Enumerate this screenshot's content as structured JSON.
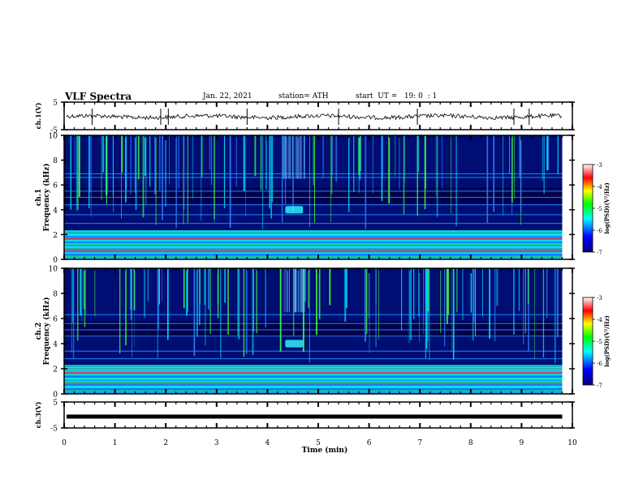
{
  "header": {
    "title": "VLF Spectra",
    "date": "Jan. 22, 2021",
    "station": "station= ATH",
    "start": "start  UT =   19: 0  : 1"
  },
  "chart_data": [
    {
      "id": "ch1-waveform",
      "type": "line",
      "ylabel": "ch.1(V)",
      "yticks": [
        "5",
        "-5"
      ],
      "ylim": [
        -5,
        5
      ],
      "x_range": [
        0,
        10
      ],
      "description": "noisy trace near 0 V across 0–9.8 min"
    },
    {
      "id": "ch1-spectrogram",
      "type": "heatmap",
      "ylabel_top": "ch.1",
      "ylabel": "Frequency (kHz)",
      "yticks": [
        "10",
        "8",
        "6",
        "4",
        "2",
        "0"
      ],
      "ylim": [
        0,
        10
      ],
      "x_range": [
        0,
        10
      ],
      "data_extent_min": 9.8,
      "features": {
        "noise_band_khz": [
          0,
          2.3
        ],
        "horizontal_lines_khz": [
          0.5,
          1.0,
          1.5,
          2.0,
          2.3,
          2.9,
          3.6,
          4.4,
          5.0,
          5.5,
          6.6,
          6.9
        ],
        "burst": {
          "t_min": [
            4.35,
            4.7
          ],
          "f_khz": [
            3.7,
            4.3
          ]
        },
        "sferics": "vertical broadband impulses spanning 2.5–10 kHz"
      },
      "colorbar": {
        "label": "log(PSD)(V²/Hz)",
        "ticks": [
          "-3",
          "-4",
          "-5",
          "-6",
          "-7"
        ],
        "range": [
          -7,
          -3
        ]
      }
    },
    {
      "id": "ch2-spectrogram",
      "type": "heatmap",
      "ylabel_top": "ch.2",
      "ylabel": "Frequency (kHz)",
      "yticks": [
        "10",
        "8",
        "6",
        "4",
        "2",
        "0"
      ],
      "ylim": [
        0,
        10
      ],
      "x_range": [
        0,
        10
      ],
      "data_extent_min": 9.8,
      "features": {
        "noise_band_khz": [
          0,
          2.3
        ],
        "horizontal_lines_khz": [
          0.6,
          1.2,
          1.8,
          2.1,
          2.8,
          3.4,
          4.6,
          5.1,
          5.6,
          6.3
        ],
        "burst": {
          "t_min": [
            4.35,
            4.7
          ],
          "f_khz": [
            3.7,
            4.3
          ]
        },
        "sferics": "vertical broadband impulses spanning 2.5–10 kHz"
      },
      "colorbar": {
        "label": "log(PSD)(V²/Hz)",
        "ticks": [
          "-3",
          "-4",
          "-5",
          "-6",
          "-7"
        ],
        "range": [
          -7,
          -3
        ]
      }
    },
    {
      "id": "ch3-waveform",
      "type": "line",
      "ylabel": "ch.3(V)",
      "yticks": [
        "5",
        "-5"
      ],
      "ylim": [
        -5,
        5
      ],
      "x_range": [
        0,
        10
      ],
      "description": "flat thick trace near 0 V"
    }
  ],
  "xaxis": {
    "label": "Time (min)",
    "ticks": [
      "0",
      "1",
      "2",
      "3",
      "4",
      "5",
      "6",
      "7",
      "8",
      "9",
      "10"
    ]
  },
  "colors": {
    "cmap": [
      "#000080",
      "#0000ff",
      "#00ffff",
      "#00ff00",
      "#ffff00",
      "#ff0000",
      "#ffffff"
    ],
    "background": "#00003c",
    "trace": "#000000"
  }
}
